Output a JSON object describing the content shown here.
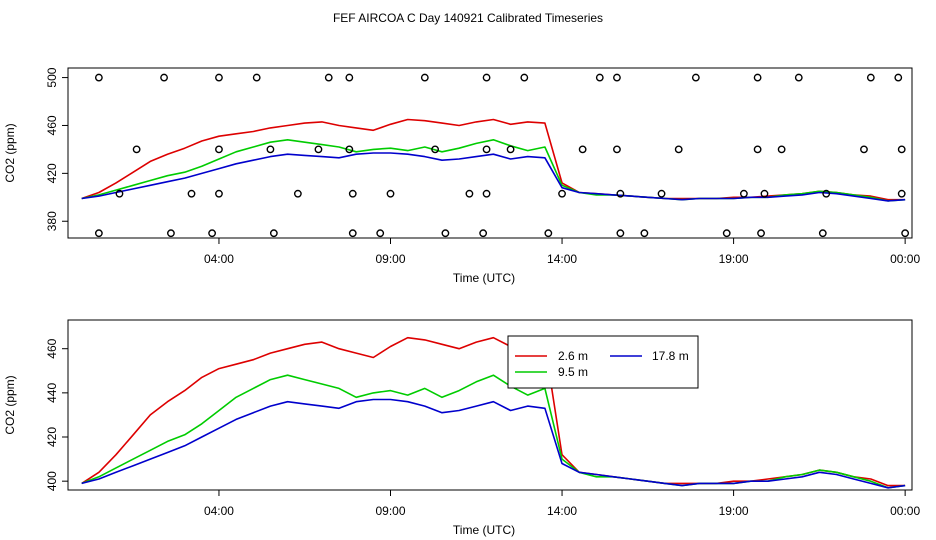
{
  "title": "FEF AIRCOA C  Day 140921  Calibrated Timeseries",
  "colors": {
    "inlet_2_6": "#dd0000",
    "inlet_9_5": "#00cc00",
    "inlet_17_8": "#0000cc",
    "axis": "#000000"
  },
  "chart_data": [
    {
      "type": "line",
      "name": "top-panel",
      "xlabel": "Time (UTC)",
      "ylabel": "CO2 (ppm)",
      "xlim": [
        -0.4,
        24.2
      ],
      "ylim": [
        366,
        508
      ],
      "x_ticks": [
        4,
        9,
        14,
        19,
        24
      ],
      "x_tick_labels": [
        "04:00",
        "09:00",
        "14:00",
        "19:00",
        "00:00"
      ],
      "y_ticks": [
        380,
        420,
        460,
        500
      ],
      "y_tick_labels": [
        "380",
        "420",
        "460",
        "500"
      ],
      "series_style": "lines",
      "calibration_points_x": [
        0.5,
        2.4,
        4.0,
        5.1,
        7.2,
        7.8,
        10.0,
        11.8,
        12.9,
        15.1,
        15.6,
        17.9,
        19.7,
        20.9,
        23.0,
        23.8,
        1.6,
        4.0,
        5.5,
        6.9,
        7.8,
        10.3,
        11.8,
        12.5,
        14.6,
        15.6,
        17.4,
        19.7,
        20.4,
        22.8,
        23.9,
        1.1,
        3.2,
        4.0,
        6.3,
        7.9,
        9.0,
        11.3,
        11.8,
        14.0,
        15.7,
        16.9,
        19.3,
        19.9,
        21.7,
        23.9,
        0.5,
        2.6,
        3.8,
        5.6,
        7.9,
        8.7,
        10.6,
        11.7,
        13.6,
        15.7,
        16.4,
        18.8,
        19.8,
        21.6,
        24.0
      ],
      "calibration_points_y": [
        500,
        500,
        500,
        500,
        500,
        500,
        500,
        500,
        500,
        500,
        500,
        500,
        500,
        500,
        500,
        500,
        440,
        440,
        440,
        440,
        440,
        440,
        440,
        440,
        440,
        440,
        440,
        440,
        440,
        440,
        440,
        403,
        403,
        403,
        403,
        403,
        403,
        403,
        403,
        403,
        403,
        403,
        403,
        403,
        403,
        403,
        370,
        370,
        370,
        370,
        370,
        370,
        370,
        370,
        370,
        370,
        370,
        370,
        370,
        370,
        370
      ]
    },
    {
      "type": "line",
      "name": "bottom-panel",
      "xlabel": "Time (UTC)",
      "ylabel": "CO2 (ppm)",
      "xlim": [
        -0.4,
        24.2
      ],
      "ylim": [
        396,
        473
      ],
      "x_ticks": [
        4,
        9,
        14,
        19,
        24
      ],
      "x_tick_labels": [
        "04:00",
        "09:00",
        "14:00",
        "19:00",
        "00:00"
      ],
      "y_ticks": [
        400,
        420,
        440,
        460
      ],
      "y_tick_labels": [
        "400",
        "420",
        "440",
        "460"
      ],
      "legend": {
        "placement": "top-right",
        "entries": [
          {
            "label": "2.6 m",
            "color": "#dd0000"
          },
          {
            "label": "17.8 m",
            "color": "#0000cc"
          },
          {
            "label": "9.5 m",
            "color": "#00cc00"
          }
        ]
      }
    }
  ],
  "series_data": {
    "x": [
      0.0,
      0.5,
      1.0,
      1.5,
      2.0,
      2.5,
      3.0,
      3.5,
      4.0,
      4.5,
      5.0,
      5.5,
      6.0,
      6.5,
      7.0,
      7.5,
      8.0,
      8.5,
      9.0,
      9.5,
      10.0,
      10.5,
      11.0,
      11.5,
      12.0,
      12.5,
      13.0,
      13.5,
      14.0,
      14.5,
      15.0,
      15.5,
      16.0,
      16.5,
      17.0,
      17.5,
      18.0,
      18.5,
      19.0,
      19.5,
      20.0,
      20.5,
      21.0,
      21.5,
      22.0,
      22.5,
      23.0,
      23.5,
      24.0
    ],
    "series": [
      {
        "name": "2.6 m",
        "color": "#dd0000",
        "values": [
          399,
          404,
          412,
          421,
          430,
          436,
          441,
          447,
          451,
          453,
          455,
          458,
          460,
          462,
          463,
          460,
          458,
          456,
          461,
          465,
          464,
          462,
          460,
          463,
          465,
          461,
          463,
          462,
          412,
          404,
          403,
          402,
          401,
          400,
          399,
          399,
          399,
          399,
          400,
          400,
          401,
          402,
          403,
          405,
          404,
          402,
          401,
          398,
          398
        ]
      },
      {
        "name": "9.5 m",
        "color": "#00cc00",
        "values": [
          399,
          402,
          406,
          410,
          414,
          418,
          421,
          426,
          432,
          438,
          442,
          446,
          448,
          446,
          444,
          442,
          438,
          440,
          441,
          439,
          442,
          438,
          441,
          445,
          448,
          443,
          439,
          442,
          410,
          404,
          402,
          402,
          401,
          400,
          399,
          398,
          399,
          399,
          399,
          400,
          400,
          402,
          403,
          405,
          404,
          402,
          400,
          397,
          398
        ]
      },
      {
        "name": "17.8 m",
        "color": "#0000cc",
        "values": [
          399,
          401,
          404,
          407,
          410,
          413,
          416,
          420,
          424,
          428,
          431,
          434,
          436,
          435,
          434,
          433,
          436,
          437,
          437,
          436,
          434,
          431,
          432,
          434,
          436,
          432,
          434,
          433,
          408,
          404,
          403,
          402,
          401,
          400,
          399,
          398,
          399,
          399,
          399,
          400,
          400,
          401,
          402,
          404,
          403,
          401,
          399,
          397,
          398
        ]
      }
    ]
  }
}
